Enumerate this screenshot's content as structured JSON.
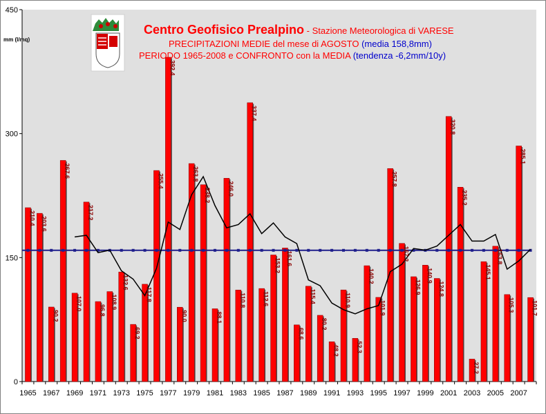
{
  "title": {
    "line1_main": "Centro Geofisico Prealpino",
    "line1_rest": " - Stazione Meteorologica di VARESE",
    "line2_main": "PRECIPITAZIONI MEDIE del mese di AGOSTO",
    "line2_blue": " (media 158,8mm)",
    "line3_main": "PERIODO 1965-2008 e CONFRONTO con la MEDIA",
    "line3_blue": "  (tendenza -6,2mm/10y)"
  },
  "colors": {
    "bar": "#ff0000",
    "mean": "#1f1f8c",
    "trend": "#000000",
    "plot_bg": "#e0e0e0"
  },
  "chart_data": {
    "type": "bar",
    "ylabel": "mm (l/mq)",
    "ylim": [
      0,
      450
    ],
    "yticks": [
      0,
      150,
      300,
      450
    ],
    "xticks": [
      "1965",
      "1967",
      "1969",
      "1971",
      "1973",
      "1975",
      "1977",
      "1979",
      "1981",
      "1983",
      "1985",
      "1987",
      "1989",
      "1991",
      "1993",
      "1995",
      "1997",
      "1999",
      "2001",
      "2003",
      "2005",
      "2007"
    ],
    "grid": false,
    "categories": [
      1965,
      1966,
      1967,
      1968,
      1969,
      1970,
      1971,
      1972,
      1973,
      1974,
      1975,
      1976,
      1977,
      1978,
      1979,
      1980,
      1981,
      1982,
      1983,
      1984,
      1985,
      1986,
      1987,
      1988,
      1989,
      1990,
      1991,
      1992,
      1993,
      1994,
      1995,
      1996,
      1997,
      1998,
      1999,
      2000,
      2001,
      2002,
      2003,
      2004,
      2005,
      2006,
      2007,
      2008
    ],
    "series": [
      {
        "values": [
          210.4,
          203.6,
          90.2,
          267.6,
          107.0,
          217.2,
          96.8,
          108.9,
          132.6,
          69.2,
          117.8,
          255.4,
          392.4,
          90.0,
          263.8,
          238.2,
          88.1,
          246.0,
          110.8,
          337.4,
          112.6,
          153.2,
          161.6,
          68.6,
          115.4,
          80.2,
          48.2,
          110.9,
          52.3,
          140.2,
          101.9,
          257.8,
          167.2,
          126.9,
          140.9,
          124.8,
          320.8,
          235.2,
          27.2,
          145.1,
          163.8,
          105.3,
          285.1,
          101.7
        ],
        "labels": [
          "210.4",
          "203.6",
          "90.2",
          "267.6",
          "107.0",
          "217.2",
          "96.8",
          "108.9",
          "132.6",
          "69.2",
          "117.8",
          "255.4",
          "392.4",
          "90.0",
          "263.8",
          "238.2",
          "88.1",
          "246.0",
          "110.8",
          "337.4",
          "112.6",
          "153.2",
          "161.6",
          "68.6",
          "115.4",
          "80.2",
          "48.2",
          "110.9",
          "52.3",
          "140.2",
          "101.9",
          "257.8",
          "167.2",
          "126.9",
          "140.9",
          "124.8",
          "320.8",
          "235.2",
          "27.2",
          "145.1",
          "163.8",
          "105.3",
          "285.1",
          "101.7"
        ]
      }
    ],
    "mean_line": {
      "value": 158.8
    },
    "trend_line": {
      "x": [
        1969,
        1970,
        1971,
        1972,
        1973,
        1974,
        1975,
        1976,
        1977,
        1978,
        1979,
        1980,
        1981,
        1982,
        1983,
        1984,
        1985,
        1986,
        1987,
        1988,
        1989,
        1990,
        1991,
        1992,
        1993,
        1994,
        1995,
        1996,
        1997,
        1998,
        1999,
        2000,
        2001,
        2002,
        2003,
        2004,
        2005,
        2006,
        2007,
        2008
      ],
      "y": [
        175,
        177,
        156,
        159,
        134,
        124,
        104,
        137,
        193,
        184,
        226,
        248,
        213,
        186,
        190,
        203,
        179,
        192,
        175,
        167,
        123,
        116,
        95,
        87,
        82,
        88,
        92,
        133,
        142,
        161,
        159,
        164,
        177,
        190,
        170,
        170,
        178,
        136,
        146,
        160
      ]
    }
  }
}
